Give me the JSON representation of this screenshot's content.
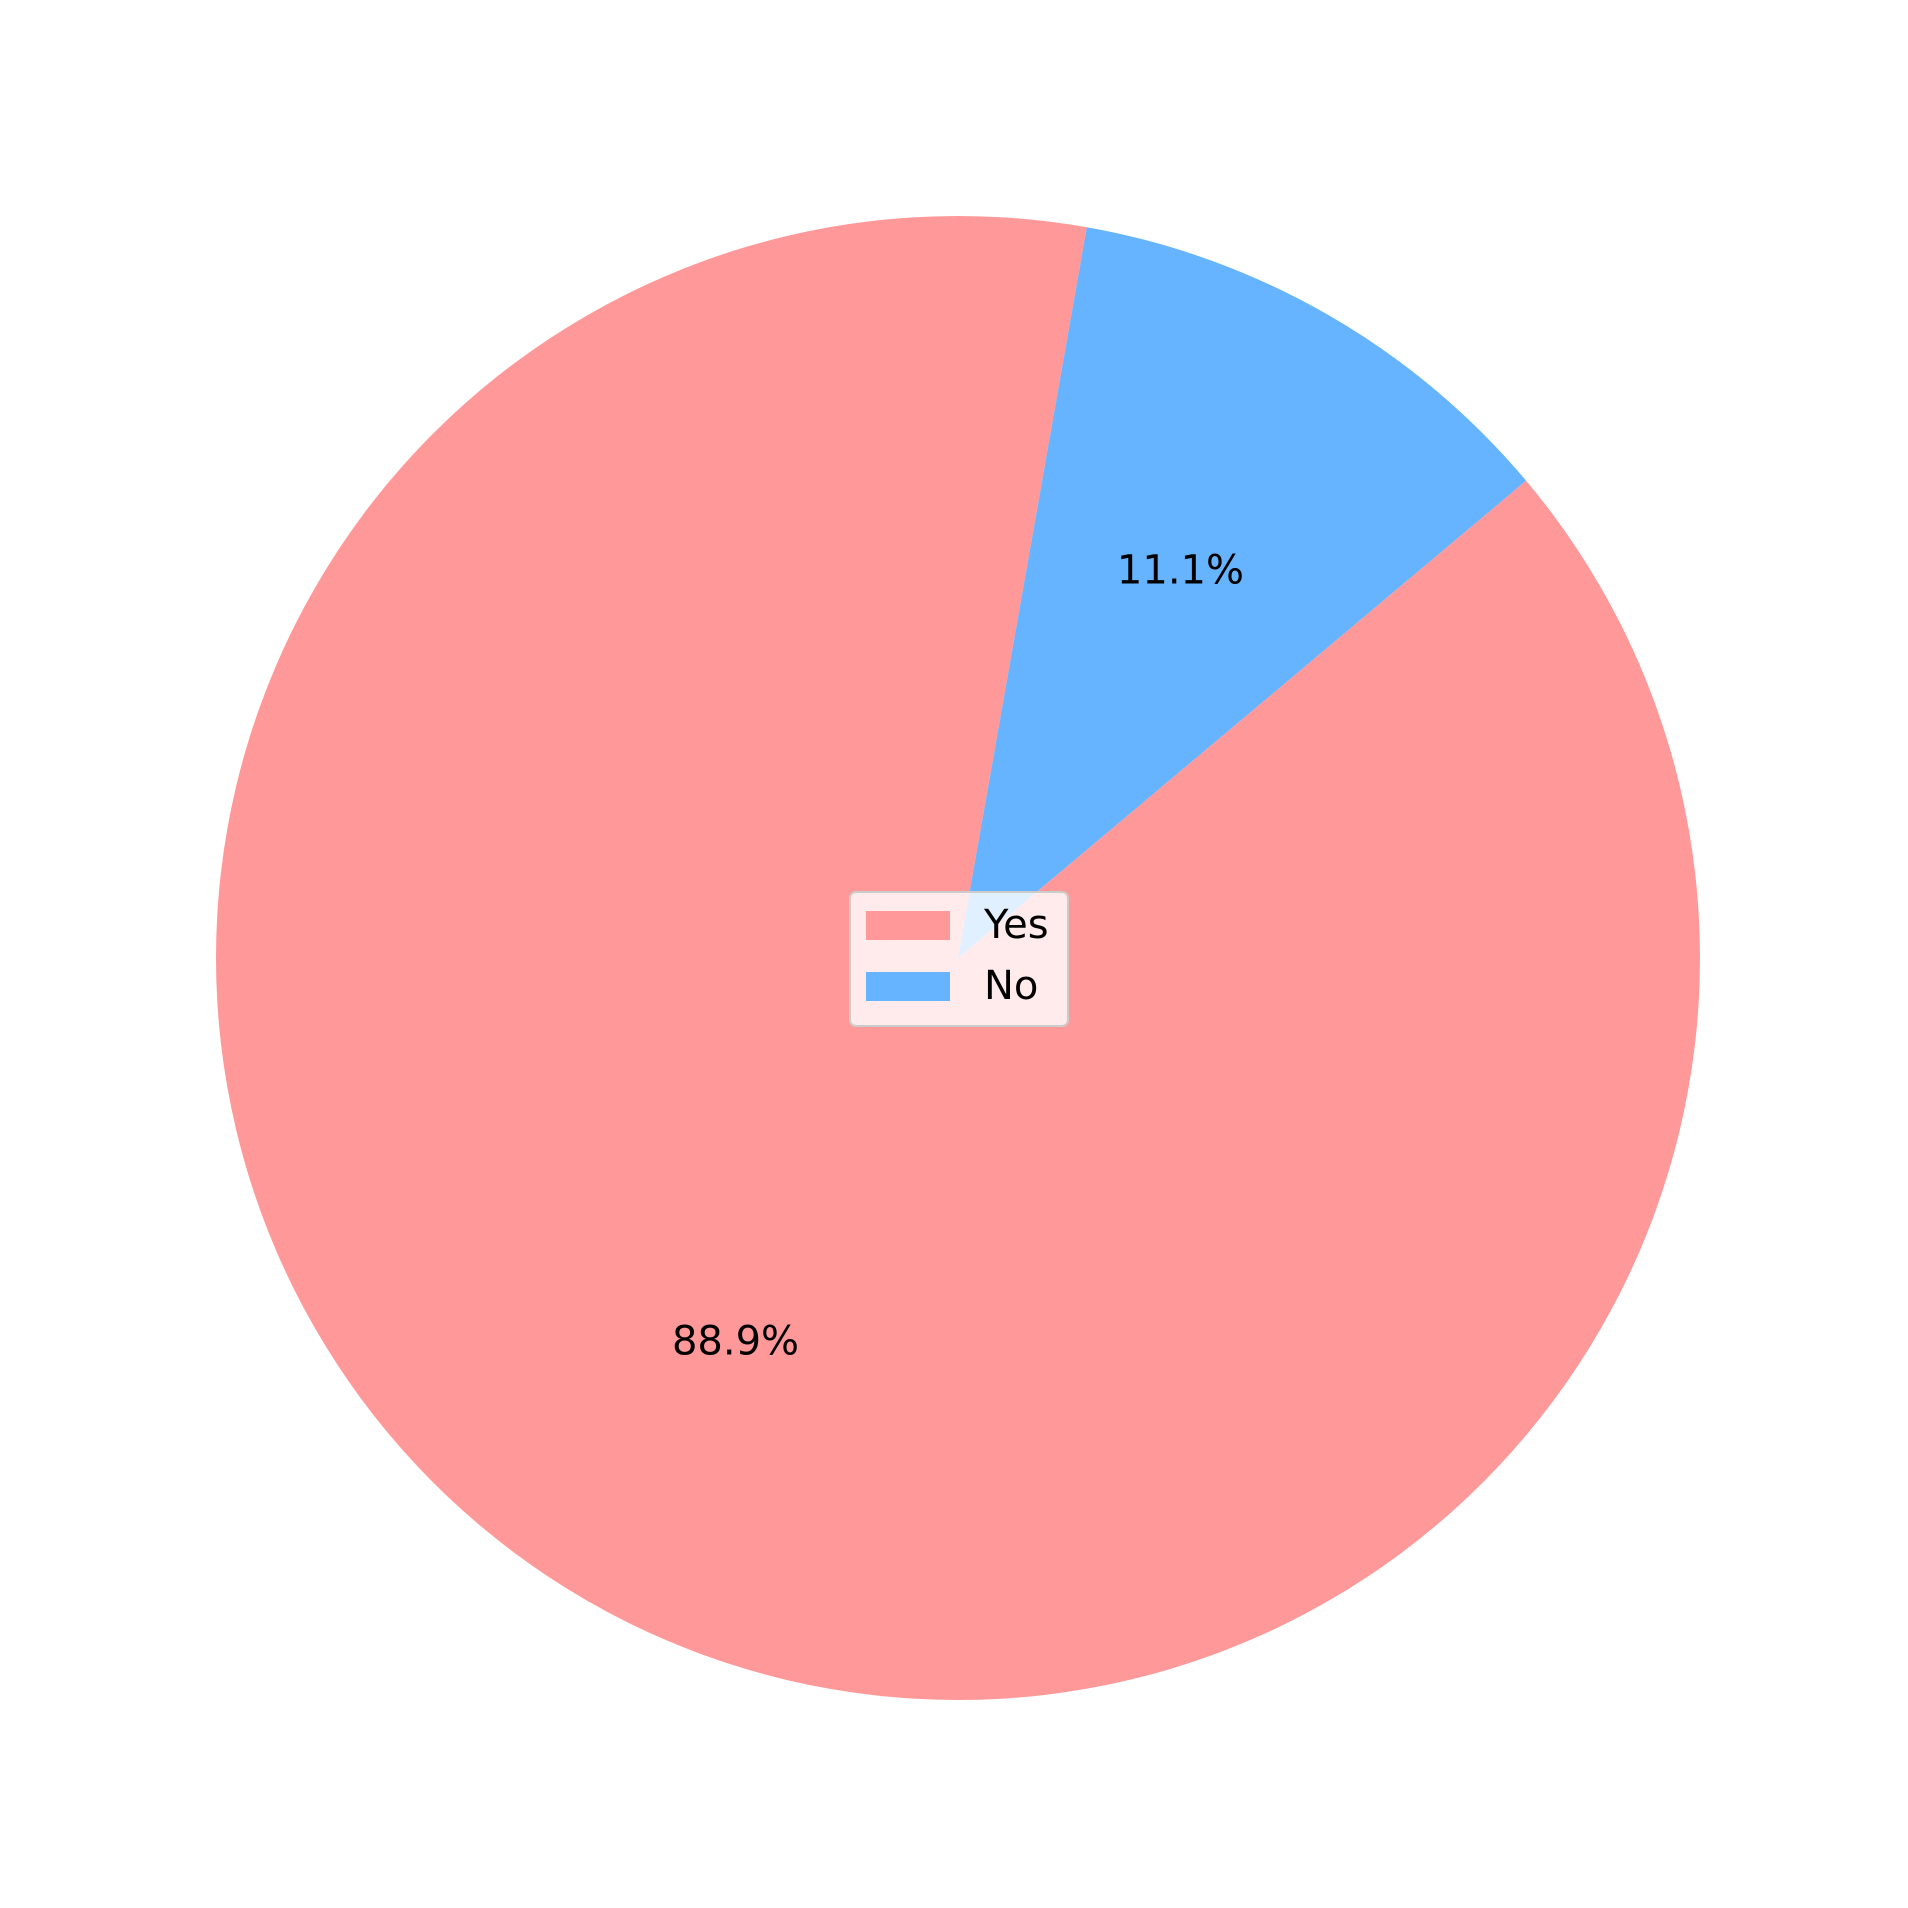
{
  "chart_data": {
    "type": "pie",
    "categories": [
      "Yes",
      "No"
    ],
    "values": [
      88.9,
      11.1
    ],
    "labels": [
      "88.9%",
      "11.1%"
    ],
    "colors": [
      "#ff9999",
      "#66b3ff"
    ],
    "legend": {
      "placement": "center",
      "entries": [
        "Yes",
        "No"
      ]
    },
    "title": ""
  }
}
